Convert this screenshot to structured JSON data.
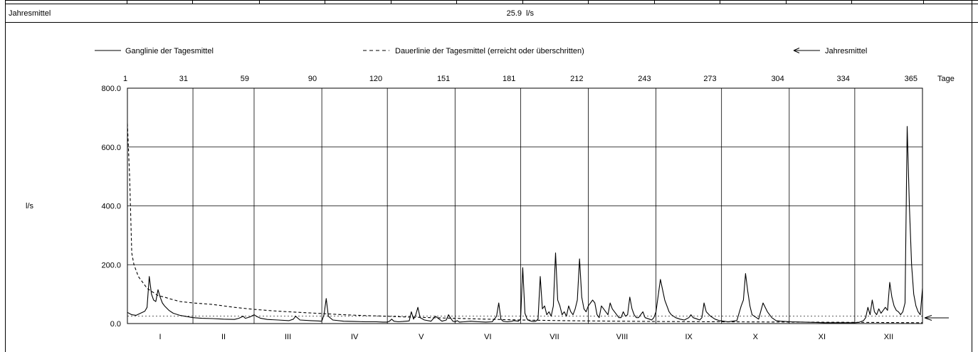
{
  "summary": {
    "label": "Jahresmittel",
    "value": "25.9",
    "unit": "l/s"
  },
  "legend": {
    "daily": "Ganglinie der Tagesmittel",
    "duration": "Dauerlinie der Tagesmittel (erreicht oder überschritten)",
    "mean": "Jahresmittel"
  },
  "chart_data": {
    "type": "line",
    "ylabel": "l/s",
    "xlabel": "Tage",
    "xlim": [
      1,
      365
    ],
    "ylim": [
      0,
      800
    ],
    "y_ticks": [
      "0.0",
      "200.0",
      "400.0",
      "600.0",
      "800.0"
    ],
    "y_tick_values": [
      0,
      200,
      400,
      600,
      800
    ],
    "x_ticks": [
      "1",
      "31",
      "59",
      "90",
      "120",
      "151",
      "181",
      "212",
      "243",
      "273",
      "304",
      "334",
      "365"
    ],
    "x_tick_values": [
      1,
      31,
      59,
      90,
      120,
      151,
      181,
      212,
      243,
      273,
      304,
      334,
      365
    ],
    "months": [
      "I",
      "II",
      "III",
      "IV",
      "V",
      "VI",
      "VII",
      "VIII",
      "IX",
      "X",
      "XI",
      "XII"
    ],
    "grid": true,
    "annual_mean": 25.9,
    "series": [
      {
        "name": "Ganglinie der Tagesmittel",
        "style": "solid",
        "x": [
          1,
          3,
          5,
          7,
          9,
          10,
          11,
          12,
          13,
          14,
          15,
          16,
          17,
          18,
          20,
          22,
          25,
          28,
          31,
          35,
          40,
          45,
          50,
          52,
          54,
          55,
          57,
          59,
          60,
          62,
          65,
          70,
          75,
          77,
          78,
          80,
          85,
          88,
          90,
          91,
          92,
          93,
          95,
          100,
          105,
          110,
          115,
          118,
          120,
          121,
          122,
          123,
          125,
          127,
          130,
          131,
          132,
          133,
          134,
          135,
          137,
          140,
          142,
          145,
          147,
          148,
          149,
          150,
          151,
          152,
          153,
          155,
          158,
          160,
          162,
          165,
          168,
          170,
          171,
          172,
          173,
          175,
          177,
          178,
          180,
          181,
          182,
          183,
          184,
          185,
          186,
          187,
          188,
          189,
          190,
          191,
          192,
          193,
          194,
          195,
          196,
          197,
          198,
          199,
          200,
          201,
          202,
          203,
          204,
          205,
          206,
          207,
          208,
          209,
          210,
          211,
          212,
          213,
          214,
          215,
          216,
          217,
          218,
          219,
          220,
          221,
          222,
          223,
          224,
          225,
          226,
          227,
          228,
          229,
          230,
          231,
          232,
          233,
          234,
          235,
          236,
          237,
          238,
          240,
          241,
          242,
          243,
          245,
          247,
          249,
          250,
          252,
          254,
          256,
          258,
          259,
          260,
          262,
          263,
          264,
          265,
          266,
          268,
          270,
          272,
          274,
          276,
          278,
          280,
          282,
          283,
          284,
          285,
          286,
          287,
          288,
          289,
          290,
          292,
          294,
          295,
          296,
          297,
          298,
          300,
          305,
          310,
          315,
          320,
          325,
          330,
          334,
          336,
          338,
          339,
          340,
          341,
          342,
          343,
          344,
          345,
          346,
          347,
          348,
          349,
          350,
          351,
          352,
          353,
          354,
          355,
          356,
          357,
          358,
          359,
          360,
          361,
          362,
          363,
          364,
          365
        ],
        "y": [
          38,
          30,
          28,
          35,
          42,
          55,
          160,
          100,
          80,
          75,
          115,
          90,
          70,
          60,
          45,
          35,
          28,
          24,
          20,
          18,
          17,
          15,
          14,
          18,
          25,
          18,
          22,
          30,
          25,
          18,
          14,
          12,
          10,
          15,
          25,
          12,
          10,
          9,
          8,
          30,
          85,
          25,
          12,
          8,
          7,
          6,
          6,
          5,
          5,
          8,
          15,
          8,
          6,
          7,
          9,
          40,
          15,
          30,
          55,
          20,
          12,
          8,
          25,
          8,
          12,
          30,
          18,
          8,
          6,
          10,
          5,
          6,
          8,
          7,
          6,
          5,
          6,
          25,
          70,
          15,
          8,
          6,
          8,
          10,
          8,
          15,
          190,
          35,
          15,
          10,
          8,
          7,
          8,
          15,
          160,
          50,
          60,
          30,
          40,
          25,
          60,
          240,
          80,
          60,
          30,
          40,
          25,
          60,
          40,
          30,
          50,
          80,
          220,
          90,
          50,
          40,
          60,
          70,
          80,
          70,
          30,
          20,
          60,
          50,
          40,
          30,
          70,
          50,
          40,
          30,
          20,
          20,
          40,
          25,
          30,
          90,
          50,
          30,
          20,
          20,
          30,
          40,
          20,
          15,
          12,
          20,
          40,
          150,
          80,
          40,
          30,
          20,
          15,
          12,
          20,
          30,
          20,
          15,
          12,
          20,
          70,
          40,
          25,
          15,
          10,
          8,
          6,
          8,
          10,
          60,
          80,
          170,
          110,
          60,
          30,
          25,
          20,
          15,
          70,
          40,
          30,
          20,
          15,
          10,
          8,
          6,
          5,
          4,
          3,
          3,
          3,
          3,
          4,
          10,
          20,
          55,
          30,
          80,
          40,
          30,
          50,
          35,
          45,
          55,
          45,
          140,
          90,
          60,
          45,
          40,
          30,
          40,
          70,
          670,
          400,
          200,
          100,
          60,
          40,
          30,
          120
        ]
      },
      {
        "name": "Dauerlinie der Tagesmittel (erreicht oder überschritten)",
        "style": "dashed",
        "x": [
          1,
          2,
          3,
          4,
          5,
          6,
          8,
          10,
          13,
          15,
          18,
          20,
          25,
          31,
          40,
          50,
          59,
          70,
          80,
          90,
          100,
          110,
          120,
          130,
          140,
          151,
          160,
          170,
          181,
          200,
          212,
          243,
          273,
          304,
          334,
          365
        ],
        "y": [
          680,
          500,
          240,
          200,
          180,
          160,
          140,
          120,
          105,
          95,
          90,
          85,
          75,
          70,
          65,
          55,
          48,
          42,
          38,
          34,
          30,
          27,
          25,
          22,
          20,
          18,
          16,
          14,
          12,
          10,
          9,
          7,
          6,
          5,
          4,
          3
        ]
      }
    ]
  }
}
